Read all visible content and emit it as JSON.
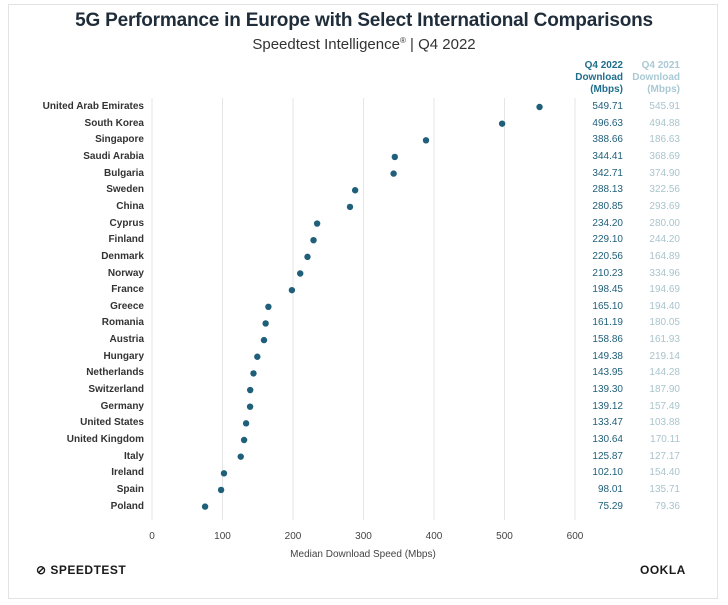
{
  "header": {
    "title": "5G Performance in Europe with Select International Comparisons",
    "subtitle": "Speedtest Intelligence",
    "subtitle_mark": "®",
    "subtitle_period": " | Q4 2022"
  },
  "columns": {
    "q4_2022": [
      "Q4 2022",
      "Download",
      "(Mbps)"
    ],
    "q4_2021": [
      "Q4 2021",
      "Download",
      "(Mbps)"
    ]
  },
  "colors": {
    "dot": "#1f5f7a",
    "q22": "#1f5f7a",
    "q21": "#a9c4cc",
    "grid": "#e6e6e6"
  },
  "chart_data": {
    "type": "scatter",
    "title": "5G Performance in Europe with Select International Comparisons",
    "subtitle": "Speedtest Intelligence® | Q4 2022",
    "xlabel": "Median Download Speed (Mbps)",
    "xlim": [
      0,
      600
    ],
    "xticks": [
      0,
      100,
      200,
      300,
      400,
      500,
      600
    ],
    "grid": true,
    "categories": [
      "United Arab Emirates",
      "South Korea",
      "Singapore",
      "Saudi Arabia",
      "Bulgaria",
      "Sweden",
      "China",
      "Cyprus",
      "Finland",
      "Denmark",
      "Norway",
      "France",
      "Greece",
      "Romania",
      "Austria",
      "Hungary",
      "Netherlands",
      "Switzerland",
      "Germany",
      "United States",
      "United Kingdom",
      "Italy",
      "Ireland",
      "Spain",
      "Poland"
    ],
    "series": [
      {
        "name": "Q4 2022 Download (Mbps)",
        "values": [
          549.71,
          496.63,
          388.66,
          344.41,
          342.71,
          288.13,
          280.85,
          234.2,
          229.1,
          220.56,
          210.23,
          198.45,
          165.1,
          161.19,
          158.86,
          149.38,
          143.95,
          139.3,
          139.12,
          133.47,
          130.64,
          125.87,
          102.1,
          98.01,
          75.29
        ]
      },
      {
        "name": "Q4 2021 Download (Mbps)",
        "values": [
          545.91,
          494.88,
          186.63,
          368.69,
          374.9,
          322.56,
          293.69,
          280.0,
          244.2,
          164.89,
          334.96,
          194.69,
          194.4,
          180.05,
          161.93,
          219.14,
          144.28,
          187.9,
          157.49,
          103.88,
          170.11,
          127.17,
          154.4,
          135.71,
          79.36
        ]
      }
    ],
    "labels_2022": [
      "549.71",
      "496.63",
      "388.66",
      "344.41",
      "342.71",
      "288.13",
      "280.85",
      "234.20",
      "229.10",
      "220.56",
      "210.23",
      "198.45",
      "165.10",
      "161.19",
      "158.86",
      "149.38",
      "143.95",
      "139.30",
      "139.12",
      "133.47",
      "130.64",
      "125.87",
      "102.10",
      "98.01",
      "75.29"
    ],
    "labels_2021": [
      "545.91",
      "494.88",
      "186.63",
      "368.69",
      "374.90",
      "322.56",
      "293.69",
      "280.00",
      "244.20",
      "164.89",
      "334.96",
      "194.69",
      "194.40",
      "180.05",
      "161.93",
      "219.14",
      "144.28",
      "187.90",
      "157.49",
      "103.88",
      "170.11",
      "127.17",
      "154.40",
      "135.71",
      "79.36"
    ]
  },
  "footer": {
    "left_logo": "SPEEDTEST",
    "right_logo": "OOKLA"
  }
}
